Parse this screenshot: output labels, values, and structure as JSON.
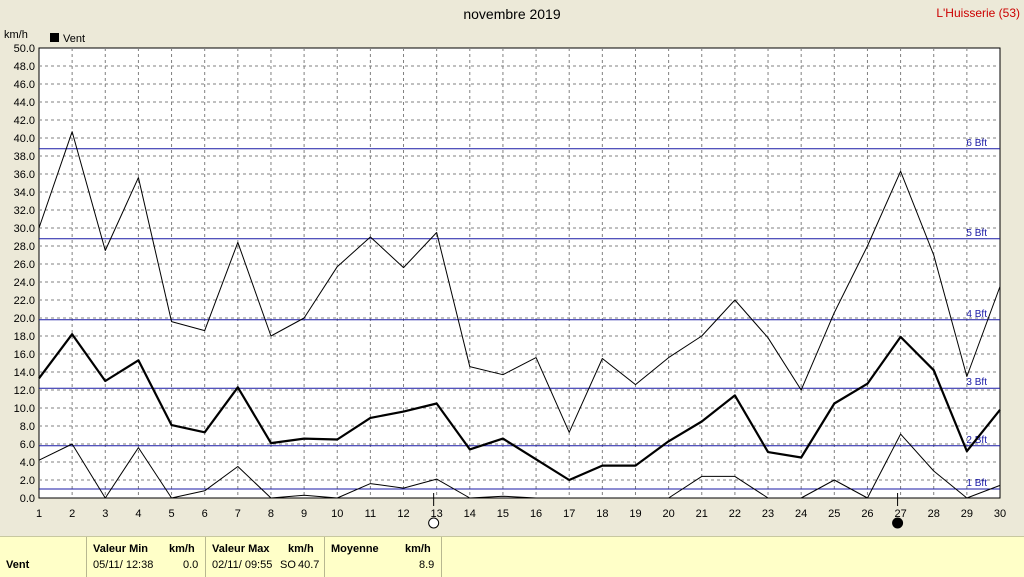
{
  "header": {
    "title": "novembre 2019",
    "station": "L'Huisserie (53)"
  },
  "chart_data": {
    "type": "line",
    "unit_label": "km/h",
    "legend": "Vent",
    "x": [
      1,
      2,
      3,
      4,
      5,
      6,
      7,
      8,
      9,
      10,
      11,
      12,
      13,
      14,
      15,
      16,
      17,
      18,
      19,
      20,
      21,
      22,
      23,
      24,
      25,
      26,
      27,
      28,
      29,
      30
    ],
    "xlim": [
      1,
      30
    ],
    "ylim": [
      0,
      50
    ],
    "yticks": [
      "0.0",
      "2.0",
      "4.0",
      "6.0",
      "8.0",
      "10.0",
      "12.0",
      "14.0",
      "16.0",
      "18.0",
      "20.0",
      "22.0",
      "24.0",
      "26.0",
      "28.0",
      "30.0",
      "32.0",
      "34.0",
      "36.0",
      "38.0",
      "40.0",
      "42.0",
      "44.0",
      "46.0",
      "48.0",
      "50.0"
    ],
    "grid": true,
    "series": [
      {
        "name": "Vent",
        "role": "mean",
        "color": "#000000",
        "values": [
          13.3,
          18.2,
          13.0,
          15.3,
          8.1,
          7.3,
          12.3,
          6.1,
          6.6,
          6.5,
          8.9,
          9.6,
          10.5,
          5.4,
          6.6,
          4.3,
          2.0,
          3.6,
          3.6,
          6.3,
          8.5,
          11.4,
          5.1,
          4.5,
          10.5,
          12.7,
          17.9,
          14.2,
          5.2,
          9.8
        ]
      },
      {
        "role": "max",
        "color": "#000000",
        "values": [
          30.0,
          40.7,
          27.5,
          35.6,
          19.6,
          18.6,
          28.4,
          18.0,
          20.0,
          25.7,
          29.0,
          25.6,
          29.5,
          14.6,
          13.7,
          15.6,
          7.3,
          15.5,
          12.6,
          15.6,
          18.0,
          22.0,
          17.8,
          12.0,
          20.6,
          28.0,
          36.3,
          27.0,
          13.5,
          23.5
        ]
      },
      {
        "role": "min",
        "color": "#000000",
        "values": [
          4.2,
          6.0,
          0.0,
          5.6,
          0.0,
          0.8,
          3.5,
          0.0,
          0.3,
          0.0,
          1.6,
          1.1,
          2.1,
          0.0,
          0.2,
          0.0,
          0.0,
          0.0,
          0.0,
          0.0,
          2.4,
          2.4,
          0.0,
          0.0,
          2.0,
          0.0,
          7.1,
          3.0,
          0.0,
          1.4
        ]
      }
    ],
    "beaufort": [
      {
        "label": "1 Bft",
        "value": 1.0
      },
      {
        "label": "2 Bft",
        "value": 5.8
      },
      {
        "label": "3 Bft",
        "value": 12.2
      },
      {
        "label": "4 Bft",
        "value": 19.8
      },
      {
        "label": "5 Bft",
        "value": 28.8
      },
      {
        "label": "6 Bft",
        "value": 38.8
      }
    ],
    "moon": [
      {
        "day": 13,
        "phase": "full"
      },
      {
        "day": 27,
        "phase": "new"
      }
    ]
  },
  "footer": {
    "row_label": "Vent",
    "min": {
      "header": "Valeur Min",
      "unit": "km/h",
      "time": "05/11/ 12:38",
      "value": "0.0"
    },
    "max": {
      "header": "Valeur Max",
      "unit": "km/h",
      "time": "02/11/ 09:55",
      "dir": "SO",
      "value": "40.7"
    },
    "mean": {
      "header": "Moyenne",
      "unit": "km/h",
      "value": "8.9"
    }
  }
}
